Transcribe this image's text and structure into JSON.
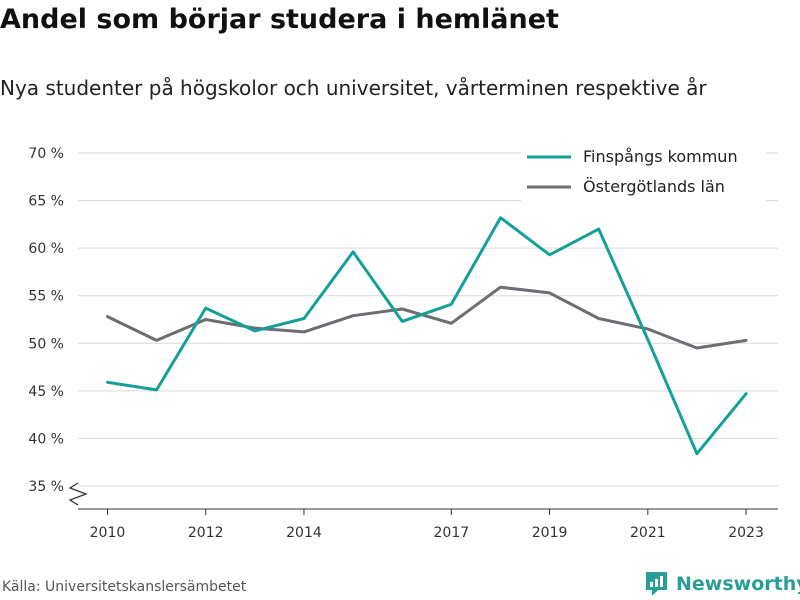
{
  "title": "Andel som börjar studera i hemlänet",
  "subtitle": "Nya studenter på högskolor och universitet, vårterminen respektive år",
  "source": "Källa: Universitetskanslersämbetet",
  "brand": "Newsworthy",
  "colors": {
    "accent": "#15a097",
    "secondary": "#6d6d73",
    "brand": "#2a9d96"
  },
  "chart_data": {
    "type": "line",
    "x": [
      2010,
      2011,
      2012,
      2013,
      2014,
      2015,
      2016,
      2017,
      2018,
      2019,
      2020,
      2021,
      2022,
      2023
    ],
    "xticks": [
      2010,
      2012,
      2014,
      2017,
      2019,
      2021,
      2023
    ],
    "xtick_labels": [
      "2010",
      "2012",
      "2014",
      "2017",
      "2019",
      "2021",
      "2023"
    ],
    "yticks": [
      35,
      40,
      45,
      50,
      55,
      60,
      65,
      70
    ],
    "ytick_labels": [
      "35 %",
      "40 %",
      "45 %",
      "50 %",
      "55 %",
      "60 %",
      "65 %",
      "70 %"
    ],
    "ylim": [
      33,
      71
    ],
    "xlabel": "",
    "ylabel": "",
    "grid": true,
    "legend": "top-right",
    "series": [
      {
        "name": "Finspångs kommun",
        "color": "#15a097",
        "values": [
          45.9,
          45.1,
          53.7,
          51.3,
          52.6,
          59.6,
          52.3,
          54.1,
          63.2,
          59.3,
          62.0,
          50.4,
          38.4,
          44.7
        ]
      },
      {
        "name": "Östergötlands län",
        "color": "#6d6d73",
        "values": [
          52.8,
          50.3,
          52.5,
          51.6,
          51.2,
          52.9,
          53.6,
          52.1,
          55.9,
          55.3,
          52.6,
          51.5,
          49.5,
          50.3
        ]
      }
    ]
  }
}
